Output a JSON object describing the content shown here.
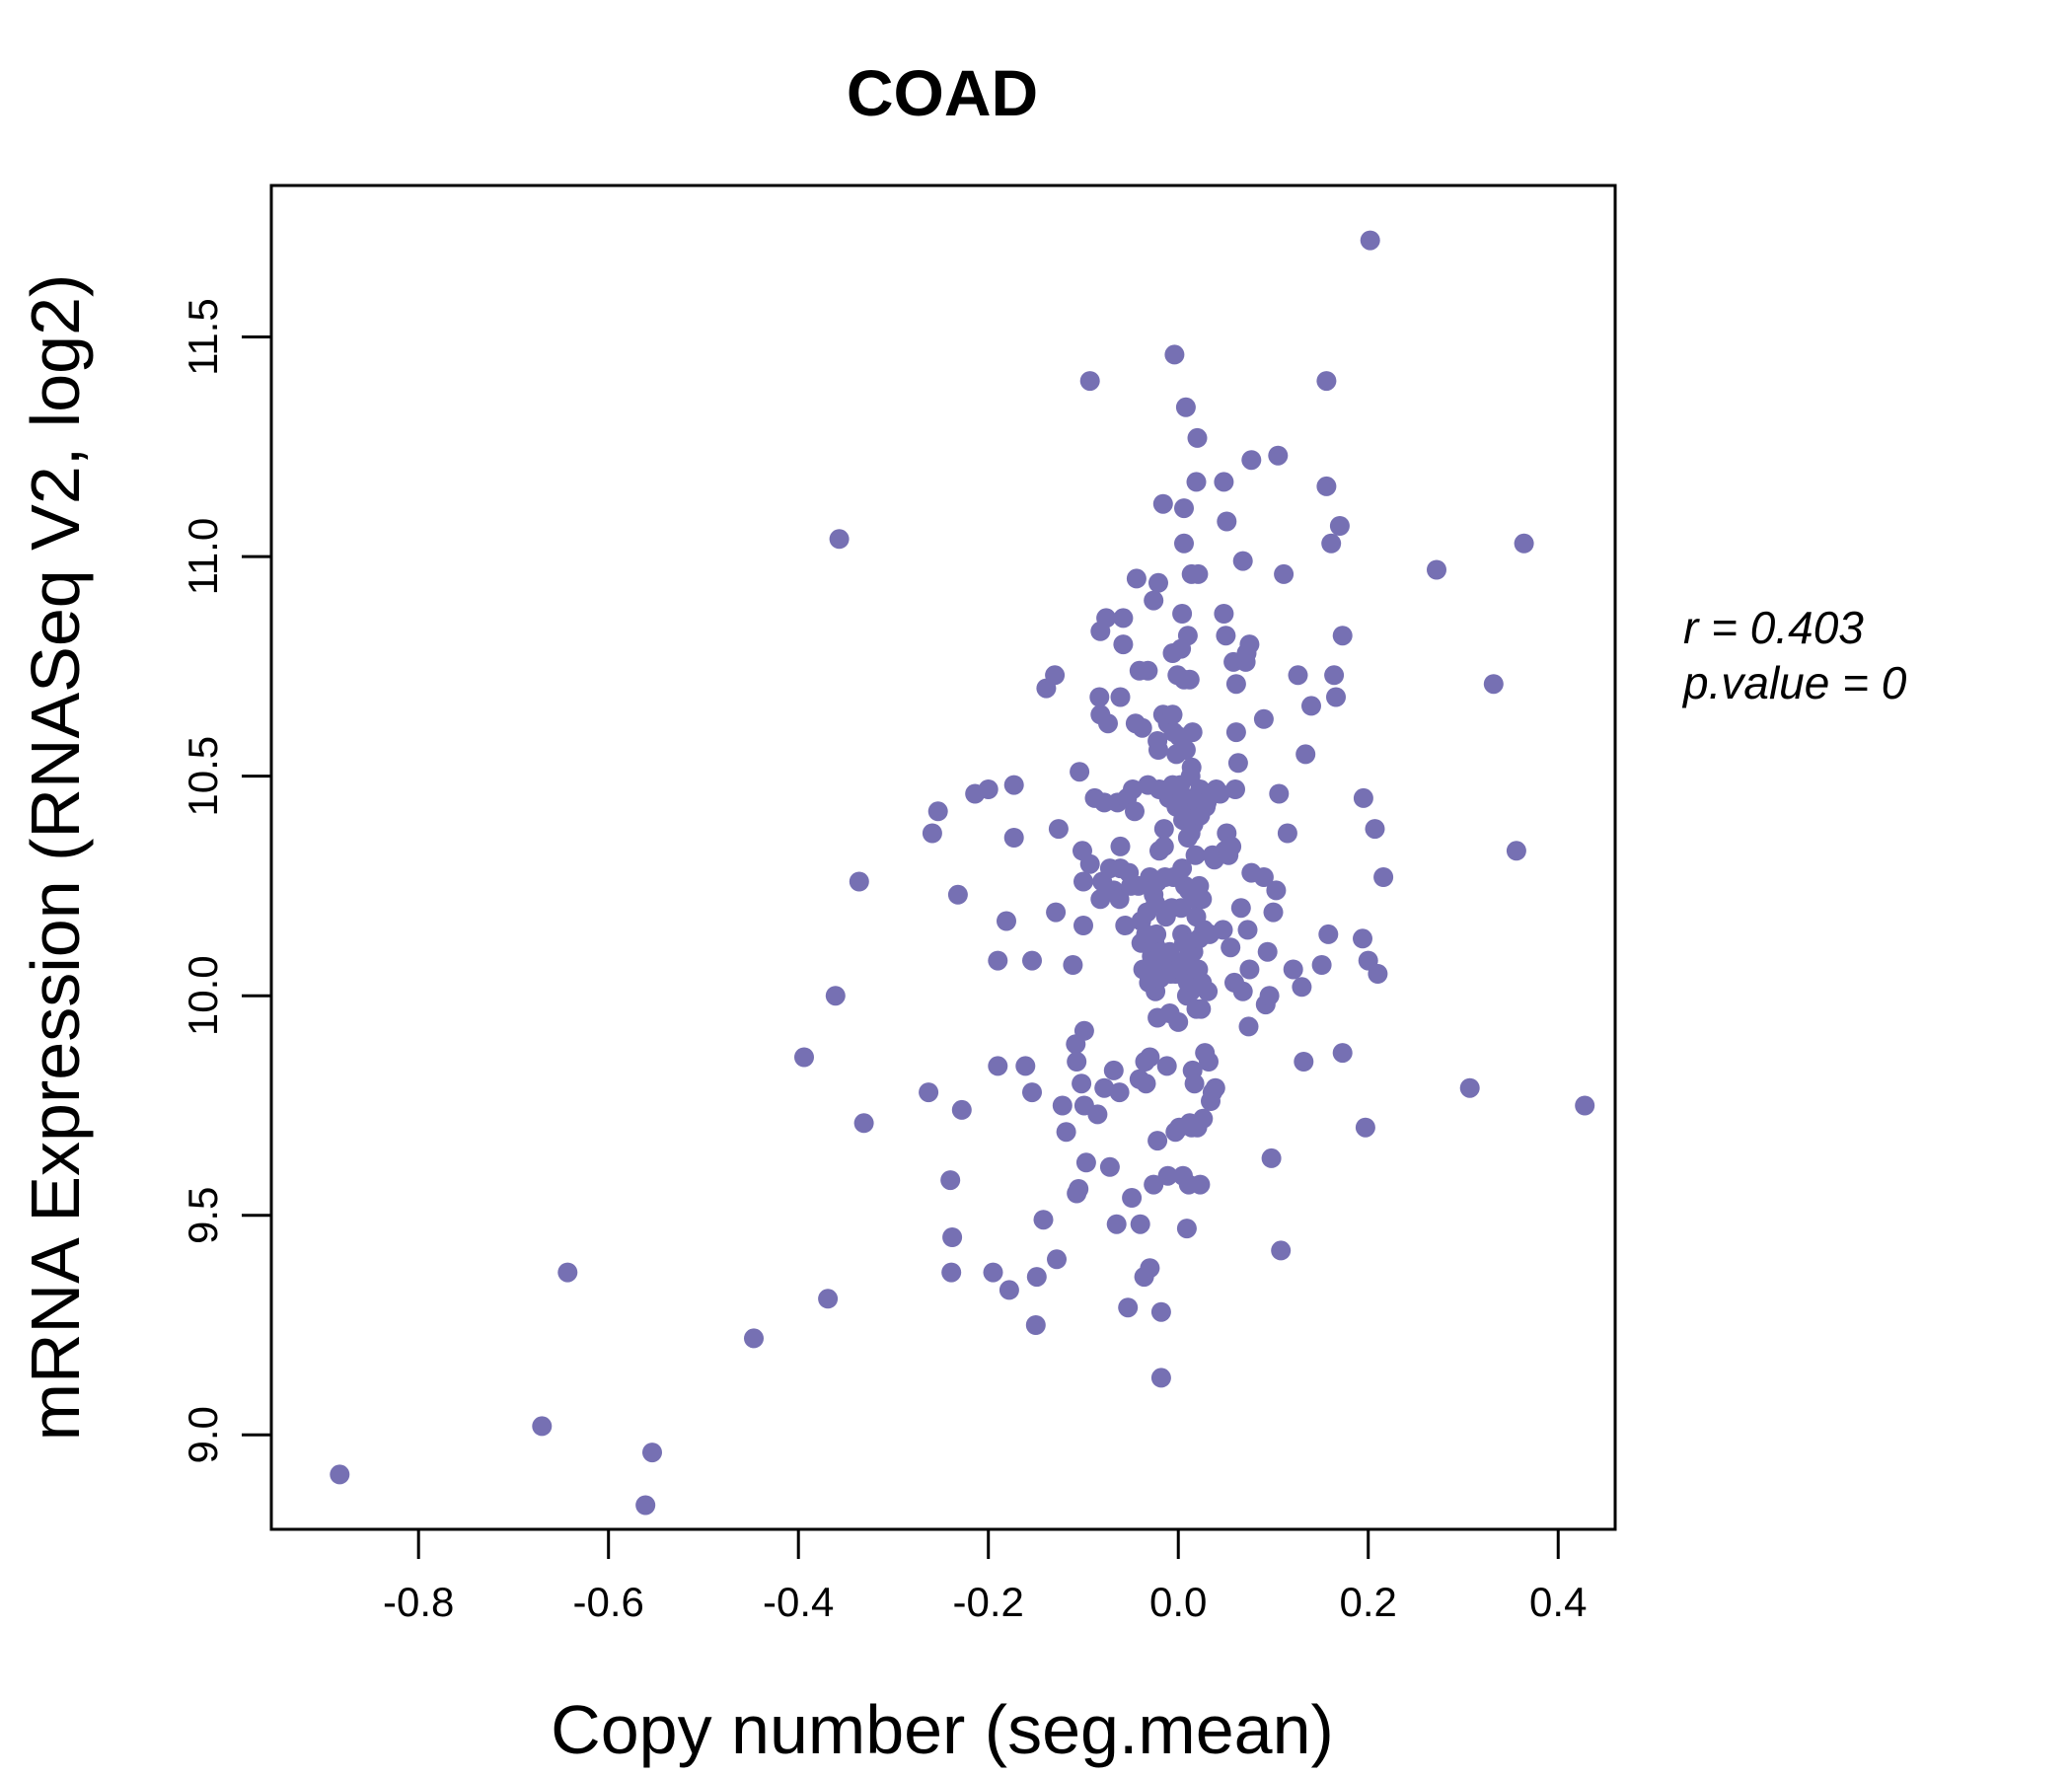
{
  "colors": {
    "point": "#7670b3",
    "title": "#7670b3",
    "axis": "#000000"
  },
  "chart_data": {
    "type": "scatter",
    "title": "COAD",
    "xlabel": "Copy number (seg.mean)",
    "ylabel": "mRNA Expression (RNASeq V2, log2)",
    "xlim": [
      -0.955,
      0.46
    ],
    "ylim": [
      8.785,
      11.845
    ],
    "x_ticks": [
      -0.8,
      -0.6,
      -0.4,
      -0.2,
      0.0,
      0.2,
      0.4
    ],
    "x_tick_labels": [
      "-0.8",
      "-0.6",
      "-0.4",
      "-0.2",
      "0.0",
      "0.2",
      "0.4"
    ],
    "y_ticks": [
      9.0,
      9.5,
      10.0,
      10.5,
      11.0,
      11.5
    ],
    "y_tick_labels": [
      "9.0",
      "9.5",
      "10.0",
      "10.5",
      "11.0",
      "11.5"
    ],
    "annotation": {
      "r_label": "r = 0.403",
      "p_label": "p.value = 0"
    },
    "points": [
      [
        -0.883,
        8.91
      ],
      [
        -0.67,
        9.02
      ],
      [
        -0.643,
        9.37
      ],
      [
        -0.561,
        8.84
      ],
      [
        -0.554,
        8.96
      ],
      [
        -0.447,
        9.22
      ],
      [
        -0.369,
        9.31
      ],
      [
        -0.394,
        9.86
      ],
      [
        -0.361,
        10.0
      ],
      [
        -0.357,
        11.04
      ],
      [
        -0.336,
        10.26
      ],
      [
        -0.331,
        9.71
      ],
      [
        -0.263,
        9.78
      ],
      [
        -0.259,
        10.37
      ],
      [
        -0.253,
        10.42
      ],
      [
        -0.24,
        9.58
      ],
      [
        -0.238,
        9.45
      ],
      [
        -0.239,
        9.37
      ],
      [
        -0.232,
        10.23
      ],
      [
        -0.228,
        9.74
      ],
      [
        -0.214,
        10.46
      ],
      [
        -0.2,
        10.47
      ],
      [
        -0.195,
        9.37
      ],
      [
        -0.19,
        10.08
      ],
      [
        -0.19,
        9.84
      ],
      [
        -0.181,
        10.17
      ],
      [
        -0.178,
        9.33
      ],
      [
        -0.173,
        10.48
      ],
      [
        -0.173,
        10.36
      ],
      [
        -0.161,
        9.84
      ],
      [
        -0.154,
        10.08
      ],
      [
        -0.154,
        9.78
      ],
      [
        -0.15,
        9.25
      ],
      [
        -0.149,
        9.36
      ],
      [
        -0.142,
        9.49
      ],
      [
        -0.139,
        10.7
      ],
      [
        -0.13,
        10.73
      ],
      [
        -0.128,
        9.4
      ],
      [
        -0.129,
        10.19
      ],
      [
        -0.126,
        10.38
      ],
      [
        -0.122,
        9.75
      ],
      [
        -0.118,
        9.69
      ],
      [
        -0.111,
        10.07
      ],
      [
        -0.108,
        9.89
      ],
      [
        -0.107,
        9.85
      ],
      [
        -0.107,
        9.55
      ],
      [
        -0.105,
        9.56
      ],
      [
        -0.104,
        10.51
      ],
      [
        -0.102,
        9.8
      ],
      [
        -0.101,
        10.33
      ],
      [
        -0.1,
        10.16
      ],
      [
        -0.1,
        10.26
      ],
      [
        -0.099,
        9.92
      ],
      [
        -0.099,
        9.75
      ],
      [
        -0.097,
        9.62
      ],
      [
        -0.093,
        10.3
      ],
      [
        -0.093,
        11.4
      ],
      [
        -0.088,
        10.45
      ],
      [
        -0.085,
        9.73
      ],
      [
        -0.083,
        10.68
      ],
      [
        -0.082,
        10.64
      ],
      [
        -0.082,
        10.83
      ],
      [
        -0.082,
        10.22
      ],
      [
        -0.08,
        10.26
      ],
      [
        -0.078,
        9.79
      ],
      [
        -0.078,
        10.44
      ],
      [
        -0.076,
        10.86
      ],
      [
        -0.074,
        10.62
      ],
      [
        -0.072,
        10.29
      ],
      [
        -0.072,
        9.61
      ],
      [
        -0.068,
        10.24
      ],
      [
        -0.068,
        9.83
      ],
      [
        -0.065,
        9.48
      ],
      [
        -0.064,
        10.44
      ],
      [
        -0.062,
        10.22
      ],
      [
        -0.062,
        9.78
      ],
      [
        -0.061,
        10.34
      ],
      [
        -0.061,
        10.68
      ],
      [
        -0.061,
        10.29
      ],
      [
        -0.058,
        10.86
      ],
      [
        -0.058,
        10.8
      ],
      [
        -0.056,
        10.16
      ],
      [
        -0.054,
        10.45
      ],
      [
        -0.053,
        9.29
      ],
      [
        -0.052,
        10.28
      ],
      [
        -0.05,
        10.25
      ],
      [
        -0.049,
        9.54
      ],
      [
        -0.048,
        10.47
      ],
      [
        -0.046,
        10.42
      ],
      [
        -0.045,
        10.62
      ],
      [
        -0.044,
        10.95
      ],
      [
        -0.042,
        10.25
      ],
      [
        -0.041,
        10.74
      ],
      [
        -0.041,
        9.81
      ],
      [
        -0.04,
        9.48
      ],
      [
        -0.039,
        10.17
      ],
      [
        -0.039,
        10.12
      ],
      [
        -0.038,
        10.61
      ],
      [
        -0.037,
        10.06
      ],
      [
        -0.036,
        9.36
      ],
      [
        -0.035,
        9.85
      ],
      [
        -0.034,
        9.8
      ],
      [
        -0.034,
        10.14
      ],
      [
        -0.033,
        10.19
      ],
      [
        -0.032,
        10.48
      ],
      [
        -0.032,
        10.74
      ],
      [
        -0.031,
        10.03
      ],
      [
        -0.03,
        9.86
      ],
      [
        -0.03,
        10.27
      ],
      [
        -0.03,
        9.38
      ],
      [
        -0.028,
        10.05
      ],
      [
        -0.028,
        10.09
      ],
      [
        -0.026,
        10.9
      ],
      [
        -0.026,
        10.23
      ],
      [
        -0.026,
        9.57
      ],
      [
        -0.025,
        10.12
      ],
      [
        -0.024,
        10.21
      ],
      [
        -0.024,
        10.01
      ],
      [
        -0.023,
        10.14
      ],
      [
        -0.022,
        9.67
      ],
      [
        -0.022,
        10.26
      ],
      [
        -0.022,
        9.95
      ],
      [
        -0.022,
        10.58
      ],
      [
        -0.021,
        10.56
      ],
      [
        -0.021,
        10.94
      ],
      [
        -0.02,
        10.33
      ],
      [
        -0.02,
        10.47
      ],
      [
        -0.019,
        10.04
      ],
      [
        -0.019,
        10.08
      ],
      [
        -0.018,
        9.28
      ],
      [
        -0.018,
        9.13
      ],
      [
        -0.018,
        10.1
      ],
      [
        -0.016,
        11.12
      ],
      [
        -0.016,
        10.64
      ],
      [
        -0.015,
        10.38
      ],
      [
        -0.015,
        10.34
      ],
      [
        -0.014,
        10.27
      ],
      [
        -0.013,
        10.18
      ],
      [
        -0.012,
        9.84
      ],
      [
        -0.012,
        10.08
      ],
      [
        -0.011,
        9.59
      ],
      [
        -0.011,
        10.62
      ],
      [
        -0.01,
        10.45
      ],
      [
        -0.009,
        9.96
      ],
      [
        -0.009,
        10.1
      ],
      [
        -0.008,
        10.05
      ],
      [
        -0.007,
        10.2
      ],
      [
        -0.006,
        10.48
      ],
      [
        -0.006,
        10.64
      ],
      [
        -0.006,
        10.78
      ],
      [
        -0.005,
        10.6
      ],
      [
        -0.005,
        10.27
      ],
      [
        -0.004,
        11.46
      ],
      [
        -0.003,
        10.05
      ],
      [
        -0.003,
        9.69
      ],
      [
        -0.002,
        10.55
      ],
      [
        -0.002,
        10.43
      ],
      [
        -0.001,
        10.73
      ],
      [
        0.0,
        9.94
      ],
      [
        0.001,
        10.59
      ],
      [
        0.001,
        10.05
      ],
      [
        0.001,
        9.7
      ],
      [
        0.002,
        10.06
      ],
      [
        0.002,
        10.48
      ],
      [
        0.003,
        10.2
      ],
      [
        0.003,
        10.79
      ],
      [
        0.004,
        10.14
      ],
      [
        0.004,
        10.29
      ],
      [
        0.004,
        10.87
      ],
      [
        0.005,
        10.4
      ],
      [
        0.005,
        9.59
      ],
      [
        0.006,
        11.03
      ],
      [
        0.006,
        10.72
      ],
      [
        0.006,
        10.42
      ],
      [
        0.006,
        10.12
      ],
      [
        0.006,
        11.11
      ],
      [
        0.007,
        10.25
      ],
      [
        0.007,
        10.08
      ],
      [
        0.008,
        11.34
      ],
      [
        0.008,
        10.56
      ],
      [
        0.008,
        10.45
      ],
      [
        0.009,
        10.0
      ],
      [
        0.009,
        9.47
      ],
      [
        0.01,
        10.82
      ],
      [
        0.01,
        10.36
      ],
      [
        0.01,
        10.03
      ],
      [
        0.011,
        10.24
      ],
      [
        0.011,
        10.41
      ],
      [
        0.011,
        9.57
      ],
      [
        0.012,
        10.72
      ],
      [
        0.012,
        9.71
      ],
      [
        0.013,
        10.01
      ],
      [
        0.013,
        10.5
      ],
      [
        0.013,
        10.37
      ],
      [
        0.014,
        10.96
      ],
      [
        0.014,
        9.7
      ],
      [
        0.014,
        10.52
      ],
      [
        0.015,
        10.03
      ],
      [
        0.015,
        9.83
      ],
      [
        0.015,
        10.6
      ],
      [
        0.016,
        10.45
      ],
      [
        0.016,
        10.39
      ],
      [
        0.016,
        10.1
      ],
      [
        0.017,
        9.8
      ],
      [
        0.017,
        10.22
      ],
      [
        0.018,
        10.32
      ],
      [
        0.019,
        9.97
      ],
      [
        0.019,
        10.18
      ],
      [
        0.019,
        11.17
      ],
      [
        0.019,
        10.06
      ],
      [
        0.02,
        11.27
      ],
      [
        0.02,
        10.44
      ],
      [
        0.02,
        9.7
      ],
      [
        0.021,
        10.96
      ],
      [
        0.021,
        10.06
      ],
      [
        0.022,
        10.25
      ],
      [
        0.022,
        10.13
      ],
      [
        0.023,
        10.41
      ],
      [
        0.023,
        9.57
      ],
      [
        0.023,
        10.47
      ],
      [
        0.024,
        9.97
      ],
      [
        0.025,
        10.22
      ],
      [
        0.025,
        10.03
      ],
      [
        0.026,
        9.72
      ],
      [
        0.027,
        10.15
      ],
      [
        0.028,
        9.87
      ],
      [
        0.029,
        10.43
      ],
      [
        0.03,
        10.44
      ],
      [
        0.031,
        10.01
      ],
      [
        0.032,
        9.85
      ],
      [
        0.033,
        10.14
      ],
      [
        0.034,
        9.76
      ],
      [
        0.035,
        10.46
      ],
      [
        0.036,
        10.32
      ],
      [
        0.036,
        9.78
      ],
      [
        0.037,
        10.46
      ],
      [
        0.038,
        10.31
      ],
      [
        0.039,
        9.79
      ],
      [
        0.04,
        10.47
      ],
      [
        0.044,
        10.46
      ],
      [
        0.047,
        10.15
      ],
      [
        0.048,
        10.87
      ],
      [
        0.048,
        11.17
      ],
      [
        0.049,
        10.33
      ],
      [
        0.05,
        10.82
      ],
      [
        0.051,
        10.37
      ],
      [
        0.051,
        11.08
      ],
      [
        0.053,
        10.32
      ],
      [
        0.055,
        10.11
      ],
      [
        0.056,
        10.34
      ],
      [
        0.058,
        10.76
      ],
      [
        0.059,
        10.03
      ],
      [
        0.06,
        10.47
      ],
      [
        0.061,
        10.6
      ],
      [
        0.061,
        10.71
      ],
      [
        0.063,
        10.53
      ],
      [
        0.066,
        10.2
      ],
      [
        0.068,
        10.99
      ],
      [
        0.068,
        10.01
      ],
      [
        0.071,
        10.76
      ],
      [
        0.072,
        10.78
      ],
      [
        0.073,
        10.15
      ],
      [
        0.074,
        9.93
      ],
      [
        0.075,
        10.8
      ],
      [
        0.075,
        10.06
      ],
      [
        0.077,
        10.28
      ],
      [
        0.077,
        11.22
      ],
      [
        0.09,
        10.63
      ],
      [
        0.09,
        10.27
      ],
      [
        0.092,
        9.98
      ],
      [
        0.094,
        10.1
      ],
      [
        0.096,
        10.0
      ],
      [
        0.098,
        9.63
      ],
      [
        0.1,
        10.19
      ],
      [
        0.103,
        10.24
      ],
      [
        0.105,
        11.23
      ],
      [
        0.106,
        10.46
      ],
      [
        0.108,
        9.42
      ],
      [
        0.111,
        10.96
      ],
      [
        0.115,
        10.37
      ],
      [
        0.121,
        10.06
      ],
      [
        0.126,
        10.73
      ],
      [
        0.13,
        10.02
      ],
      [
        0.132,
        9.85
      ],
      [
        0.134,
        10.55
      ],
      [
        0.14,
        10.66
      ],
      [
        0.151,
        10.07
      ],
      [
        0.156,
        11.16
      ],
      [
        0.156,
        11.4
      ],
      [
        0.158,
        10.14
      ],
      [
        0.161,
        11.03
      ],
      [
        0.164,
        10.73
      ],
      [
        0.166,
        10.68
      ],
      [
        0.17,
        11.07
      ],
      [
        0.173,
        10.82
      ],
      [
        0.173,
        9.87
      ],
      [
        0.194,
        10.13
      ],
      [
        0.195,
        10.45
      ],
      [
        0.197,
        9.7
      ],
      [
        0.2,
        10.08
      ],
      [
        0.202,
        11.72
      ],
      [
        0.207,
        10.38
      ],
      [
        0.21,
        10.05
      ],
      [
        0.216,
        10.27
      ],
      [
        0.272,
        10.97
      ],
      [
        0.307,
        9.79
      ],
      [
        0.332,
        10.71
      ],
      [
        0.356,
        10.33
      ],
      [
        0.364,
        11.03
      ],
      [
        0.428,
        9.75
      ]
    ]
  }
}
